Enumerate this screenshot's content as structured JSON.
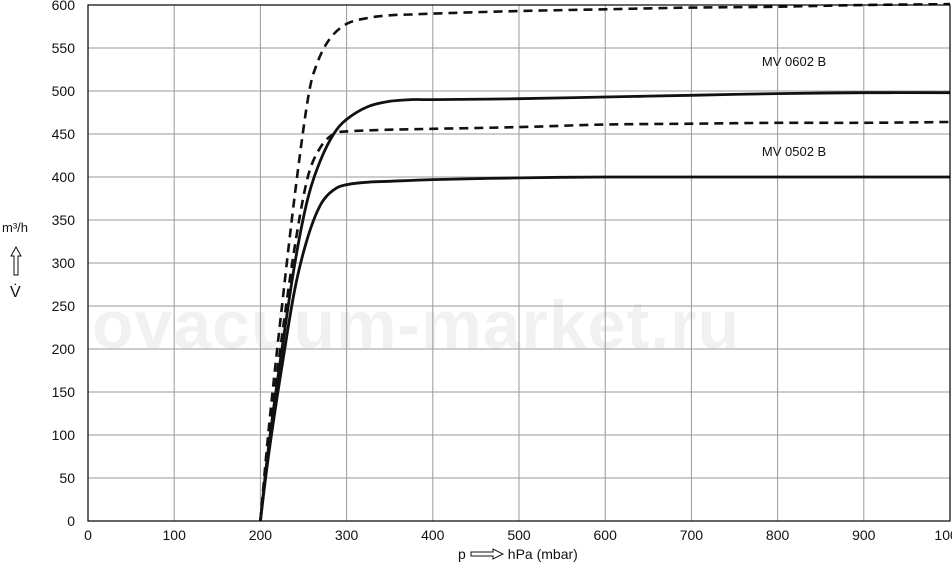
{
  "chart_data": {
    "type": "line",
    "xlabel_prefix": "p",
    "xlabel_unit": "hPa (mbar)",
    "ylabel_unit": "m³/h",
    "ylabel_symbol": "V̇",
    "xlim": [
      0,
      1000
    ],
    "ylim": [
      0,
      600
    ],
    "x_ticks": [
      0,
      100,
      200,
      300,
      400,
      500,
      600,
      700,
      800,
      900,
      1000
    ],
    "y_ticks": [
      0,
      50,
      100,
      150,
      200,
      250,
      300,
      350,
      400,
      450,
      500,
      550,
      600
    ],
    "grid": true,
    "series": [
      {
        "name": "MV 0602 B",
        "style": "solid",
        "x": [
          200,
          210,
          225,
          240,
          255,
          270,
          285,
          300,
          325,
          350,
          375,
          400,
          500,
          600,
          700,
          800,
          900,
          1000
        ],
        "y": [
          0,
          90,
          200,
          300,
          375,
          420,
          450,
          467,
          482,
          488,
          490,
          490,
          491,
          493,
          495,
          497,
          498,
          498
        ]
      },
      {
        "name": "MV 0502 B",
        "style": "solid",
        "x": [
          200,
          210,
          225,
          240,
          255,
          270,
          285,
          300,
          325,
          350,
          400,
          500,
          600,
          700,
          800,
          900,
          1000
        ],
        "y": [
          0,
          80,
          180,
          270,
          330,
          368,
          385,
          391,
          394,
          395,
          397,
          399,
          400,
          400,
          400,
          400,
          400
        ]
      },
      {
        "name": "",
        "style": "dashed",
        "x": [
          200,
          210,
          225,
          240,
          255,
          265,
          280,
          300,
          325,
          350,
          375,
          400,
          500,
          600,
          700,
          800,
          900,
          1000
        ],
        "y": [
          0,
          110,
          250,
          380,
          490,
          530,
          560,
          578,
          585,
          588,
          589,
          590,
          593,
          595,
          597,
          598,
          600,
          601
        ]
      },
      {
        "name": "",
        "style": "dashed",
        "x": [
          200,
          210,
          225,
          240,
          255,
          270,
          285,
          300,
          350,
          400,
          500,
          600,
          700,
          800,
          900,
          1000
        ],
        "y": [
          0,
          95,
          215,
          320,
          400,
          435,
          450,
          453,
          455,
          456,
          458,
          461,
          462,
          463,
          463,
          464
        ]
      }
    ],
    "annotations": [
      {
        "text": "MV 0602 B",
        "x": 805,
        "y": 535
      },
      {
        "text": "MV 0502 B",
        "x": 805,
        "y": 430
      }
    ]
  },
  "watermark": "ovacuum-market.ru"
}
